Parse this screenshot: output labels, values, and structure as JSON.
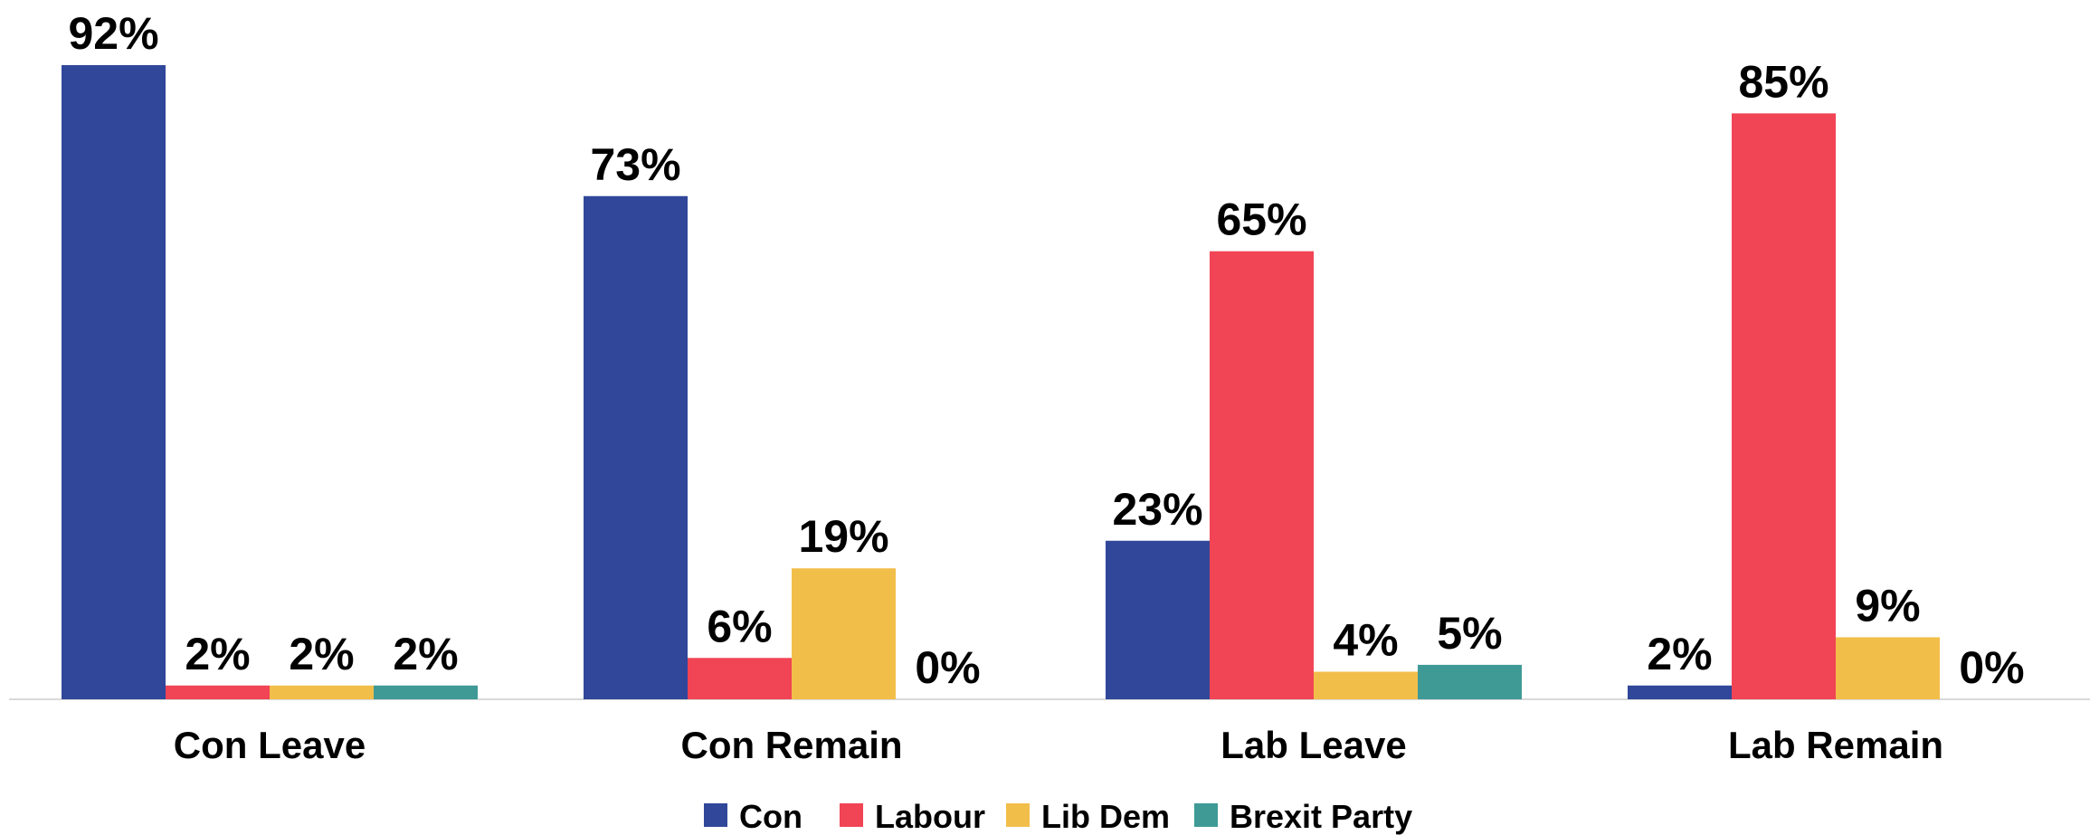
{
  "chart_data": {
    "type": "bar",
    "categories": [
      "Con Leave",
      "Con Remain",
      "Lab Leave",
      "Lab Remain"
    ],
    "series": [
      {
        "name": "Con",
        "color": "#30479A",
        "values": [
          92,
          73,
          23,
          2
        ],
        "labels": [
          "92%",
          "73%",
          "23%",
          "2%"
        ]
      },
      {
        "name": "Labour",
        "color": "#F14455",
        "values": [
          2,
          6,
          65,
          85
        ],
        "labels": [
          "2%",
          "6%",
          "65%",
          "85%"
        ]
      },
      {
        "name": "Lib Dem",
        "color": "#F2BE4A",
        "values": [
          2,
          19,
          4,
          9
        ],
        "labels": [
          "2%",
          "19%",
          "4%",
          "9%"
        ]
      },
      {
        "name": "Brexit Party",
        "color": "#3F9A96",
        "values": [
          2,
          0,
          5,
          0
        ],
        "labels": [
          "2%",
          "0%",
          "5%",
          "0%"
        ]
      }
    ],
    "ylim": [
      0,
      100
    ],
    "unit": "%",
    "grid": false,
    "legend_position": "bottom-center",
    "axis_color": "#D9D9D9"
  }
}
